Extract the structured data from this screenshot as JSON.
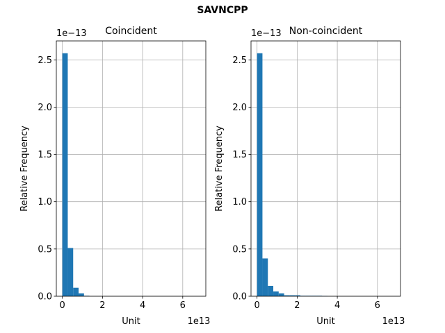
{
  "figure": {
    "suptitle": "SAVNCPP"
  },
  "chart_data": [
    {
      "type": "bar",
      "title": "Coincident",
      "xlabel": "Unit",
      "ylabel": "Relative Frequency",
      "x_scale_label": "1e13",
      "y_scale_label": "1e−13",
      "xlim": [
        -0.3,
        7.15
      ],
      "ylim": [
        0,
        2.7
      ],
      "xticks": [
        0,
        2,
        4,
        6
      ],
      "xtick_labels": [
        "0",
        "2",
        "4",
        "6"
      ],
      "yticks": [
        0.0,
        0.5,
        1.0,
        1.5,
        2.0,
        2.5
      ],
      "ytick_labels": [
        "0.0",
        "0.5",
        "1.0",
        "1.5",
        "2.0",
        "2.5"
      ],
      "grid": true,
      "bar_color": "#1f77b4",
      "bin_edges": [
        0.0,
        0.27,
        0.54,
        0.81,
        1.08,
        1.35,
        1.62,
        1.89,
        2.16,
        2.43,
        2.7,
        2.97,
        3.24,
        3.51,
        3.78,
        4.05,
        4.32,
        4.59,
        4.86,
        5.13,
        5.4,
        5.67,
        5.94,
        6.21,
        6.48,
        6.75
      ],
      "values": [
        2.57,
        0.51,
        0.09,
        0.03,
        0.005,
        0,
        0,
        0,
        0,
        0,
        0,
        0,
        0,
        0,
        0,
        0,
        0,
        0,
        0,
        0,
        0,
        0,
        0,
        0,
        0
      ]
    },
    {
      "type": "bar",
      "title": "Non-coincident",
      "xlabel": "Unit",
      "ylabel": "Relative Frequency",
      "x_scale_label": "1e13",
      "y_scale_label": "1e−13",
      "xlim": [
        -0.3,
        7.15
      ],
      "ylim": [
        0,
        2.7
      ],
      "xticks": [
        0,
        2,
        4,
        6
      ],
      "xtick_labels": [
        "0",
        "2",
        "4",
        "6"
      ],
      "yticks": [
        0.0,
        0.5,
        1.0,
        1.5,
        2.0,
        2.5
      ],
      "ytick_labels": [
        "0.0",
        "0.5",
        "1.0",
        "1.5",
        "2.0",
        "2.5"
      ],
      "grid": true,
      "bar_color": "#1f77b4",
      "bin_edges": [
        0.0,
        0.27,
        0.54,
        0.81,
        1.08,
        1.35,
        1.62,
        1.89,
        2.16,
        2.43,
        2.7,
        2.97,
        3.24,
        3.51,
        3.78,
        4.05,
        4.32,
        4.59,
        4.86,
        5.13,
        5.4,
        5.67,
        5.94,
        6.21,
        6.48,
        6.75
      ],
      "values": [
        2.57,
        0.4,
        0.11,
        0.05,
        0.03,
        0.01,
        0.01,
        0.01,
        0.005,
        0.005,
        0.005,
        0.005,
        0.003,
        0,
        0,
        0,
        0,
        0,
        0,
        0,
        0,
        0,
        0,
        0,
        0
      ]
    }
  ]
}
